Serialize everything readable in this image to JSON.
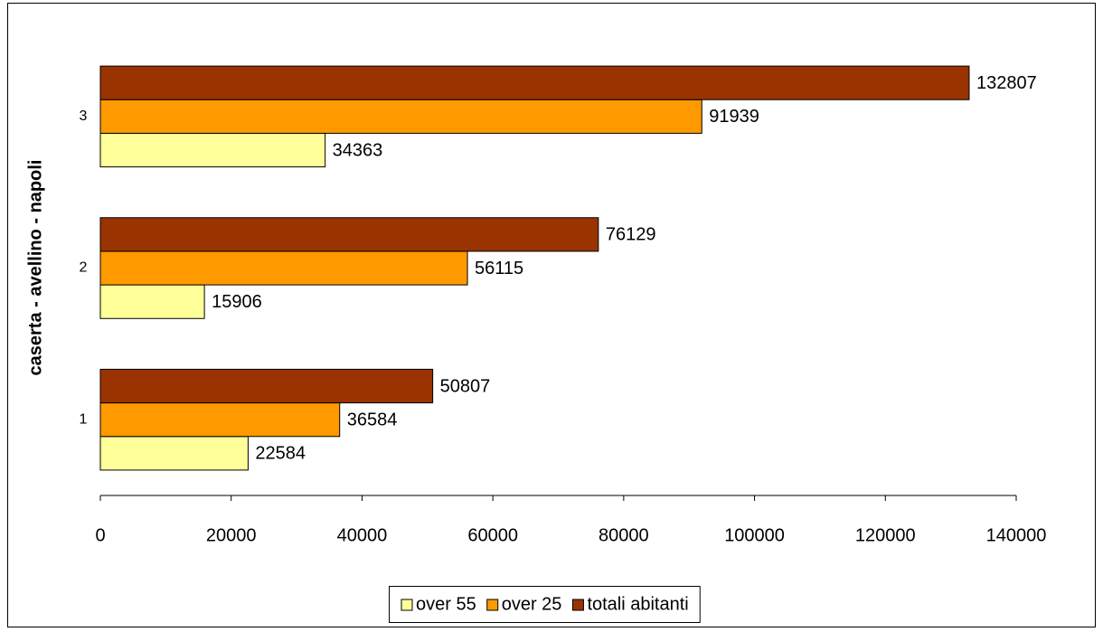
{
  "chart_data": {
    "type": "bar",
    "orientation": "horizontal",
    "y_label": "caserta - avellino - napoli",
    "categories": [
      "1",
      "2",
      "3"
    ],
    "series": [
      {
        "name": "over 55",
        "color": "#ffff99",
        "values": [
          22584,
          15906,
          34363
        ]
      },
      {
        "name": "over 25",
        "color": "#ff9900",
        "values": [
          36584,
          56115,
          91939
        ]
      },
      {
        "name": "totali abitanti",
        "color": "#993300",
        "values": [
          50807,
          76129,
          132807
        ]
      }
    ],
    "xlim": [
      0,
      140000
    ],
    "xticks": [
      0,
      20000,
      40000,
      60000,
      80000,
      100000,
      120000,
      140000
    ],
    "grid": false,
    "legend": "bottom"
  }
}
